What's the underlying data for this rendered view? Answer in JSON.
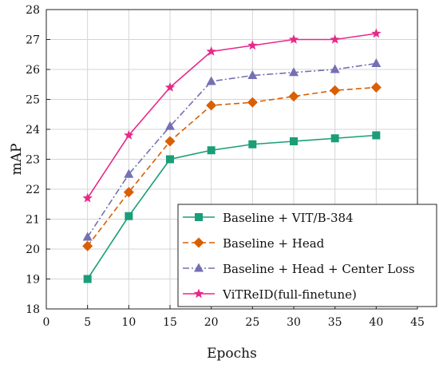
{
  "chart_data": {
    "type": "line",
    "xlabel": "Epochs",
    "ylabel": "mAP",
    "xlim": [
      0,
      45
    ],
    "ylim": [
      18,
      28
    ],
    "xticks": [
      0,
      5,
      10,
      15,
      20,
      25,
      30,
      35,
      40,
      45
    ],
    "yticks": [
      18,
      19,
      20,
      21,
      22,
      23,
      24,
      25,
      26,
      27,
      28
    ],
    "grid": true,
    "legend_position": "bottom-right",
    "x": [
      5,
      10,
      15,
      20,
      25,
      30,
      35,
      40
    ],
    "series": [
      {
        "name": "Baseline + VIT/B-384",
        "values": [
          19.0,
          21.1,
          23.0,
          23.3,
          23.5,
          23.6,
          23.7,
          23.8
        ],
        "color": "#1a9e77",
        "dash": "solid",
        "marker": "square"
      },
      {
        "name": "Baseline + Head",
        "values": [
          20.1,
          21.9,
          23.6,
          24.8,
          24.9,
          25.1,
          25.3,
          25.4
        ],
        "color": "#d95f02",
        "dash": "dashed",
        "marker": "diamond"
      },
      {
        "name": "Baseline + Head + Center Loss",
        "values": [
          20.4,
          22.5,
          24.1,
          25.6,
          25.8,
          25.9,
          26.0,
          26.2
        ],
        "color": "#7570b3",
        "dash": "dashdot",
        "marker": "triangle"
      },
      {
        "name": "ViTReID(full-finetune)",
        "values": [
          21.7,
          23.8,
          25.4,
          26.6,
          26.8,
          27.0,
          27.0,
          27.2
        ],
        "color": "#e7298a",
        "dash": "solid",
        "marker": "star"
      }
    ]
  }
}
